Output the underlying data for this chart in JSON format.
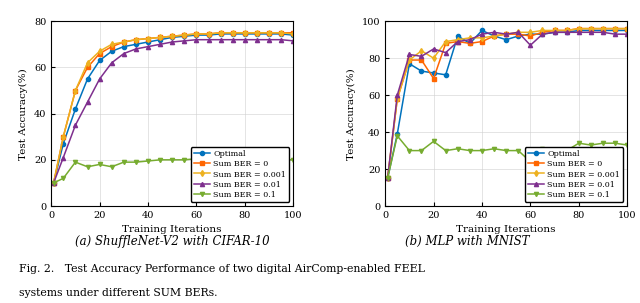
{
  "left_title": "(a) ShuffleNet-V2 with CIFAR-10",
  "right_title": "(b) MLP with MNIST",
  "fig_caption_line1": "Fig. 2.   Test Accuracy Performance of two digital AirComp-enabled FEEL",
  "fig_caption_line2": "systems under different SUM BERs.",
  "xlabel": "Training Iterations",
  "ylabel": "Test Accuracy(%)",
  "xlim": [
    0,
    100
  ],
  "left_ylim": [
    0,
    80
  ],
  "right_ylim": [
    0,
    100
  ],
  "left_yticks": [
    0,
    20,
    40,
    60,
    80
  ],
  "right_yticks": [
    0,
    20,
    40,
    60,
    80,
    100
  ],
  "xticks": [
    0,
    20,
    40,
    60,
    80,
    100
  ],
  "legend_labels": [
    "Optimal",
    "Sum BER = 0",
    "Sum BER = 0.001",
    "Sum BER = 0.01",
    "Sum BER = 0.1"
  ],
  "colors": [
    "#0072BD",
    "#FF6600",
    "#EDB120",
    "#7E2F8E",
    "#77AC30"
  ],
  "markers": [
    "o",
    "s",
    "d",
    "^",
    "v"
  ],
  "markersize": 3.0,
  "linewidth": 1.1,
  "left_data": {
    "iterations": [
      1,
      5,
      10,
      15,
      20,
      25,
      30,
      35,
      40,
      45,
      50,
      55,
      60,
      65,
      70,
      75,
      80,
      85,
      90,
      95,
      100
    ],
    "Optimal": [
      10,
      27,
      42,
      55,
      63,
      67,
      69,
      70,
      71,
      72,
      73,
      73.5,
      74,
      74,
      74.5,
      74.5,
      74.5,
      74.5,
      74.5,
      74.5,
      74
    ],
    "BER0": [
      10,
      30,
      50,
      60,
      66,
      69,
      71,
      72,
      72.5,
      73,
      73.5,
      74,
      74.5,
      74.5,
      75,
      75,
      75,
      75,
      75,
      75,
      75
    ],
    "BER0001": [
      10,
      30,
      50,
      62,
      67,
      70,
      71,
      72,
      72.5,
      73,
      73.5,
      74,
      74.5,
      74.5,
      75,
      75,
      75,
      75,
      75,
      75,
      74.5
    ],
    "BER001": [
      10,
      21,
      35,
      45,
      55,
      62,
      66,
      68,
      69,
      70,
      71,
      71.5,
      72,
      72,
      72,
      72,
      72,
      72,
      72,
      72,
      71.5
    ],
    "BER01": [
      10,
      12,
      19,
      17,
      18,
      17,
      19,
      19,
      19.5,
      20,
      20,
      20,
      20.5,
      20,
      20,
      20,
      20,
      20,
      20,
      20,
      20
    ]
  },
  "right_data": {
    "iterations": [
      1,
      5,
      10,
      15,
      20,
      25,
      30,
      35,
      40,
      45,
      50,
      55,
      60,
      65,
      70,
      75,
      80,
      85,
      90,
      95,
      100
    ],
    "Optimal": [
      15,
      39,
      77,
      73,
      72,
      71,
      92,
      88,
      95,
      92,
      90,
      92,
      93,
      93,
      94,
      94,
      95,
      95,
      95,
      95,
      95
    ],
    "BER0": [
      15,
      58,
      79,
      79,
      69,
      88,
      89,
      88,
      89,
      92,
      93,
      93,
      92,
      94,
      95,
      95,
      96,
      96,
      96,
      96,
      96
    ],
    "BER0001": [
      15,
      58,
      79,
      84,
      80,
      89,
      90,
      91,
      91,
      92,
      93,
      94,
      94,
      95,
      95,
      95,
      96,
      96,
      96,
      96,
      96
    ],
    "BER001": [
      15,
      60,
      82,
      81,
      85,
      83,
      89,
      90,
      93,
      94,
      93,
      94,
      87,
      93,
      94,
      94,
      94,
      94,
      94,
      93,
      93
    ],
    "BER01": [
      15,
      38,
      30,
      30,
      35,
      30,
      31,
      30,
      30,
      31,
      30,
      30,
      24,
      31,
      30,
      30,
      34,
      33,
      34,
      34,
      33
    ]
  }
}
